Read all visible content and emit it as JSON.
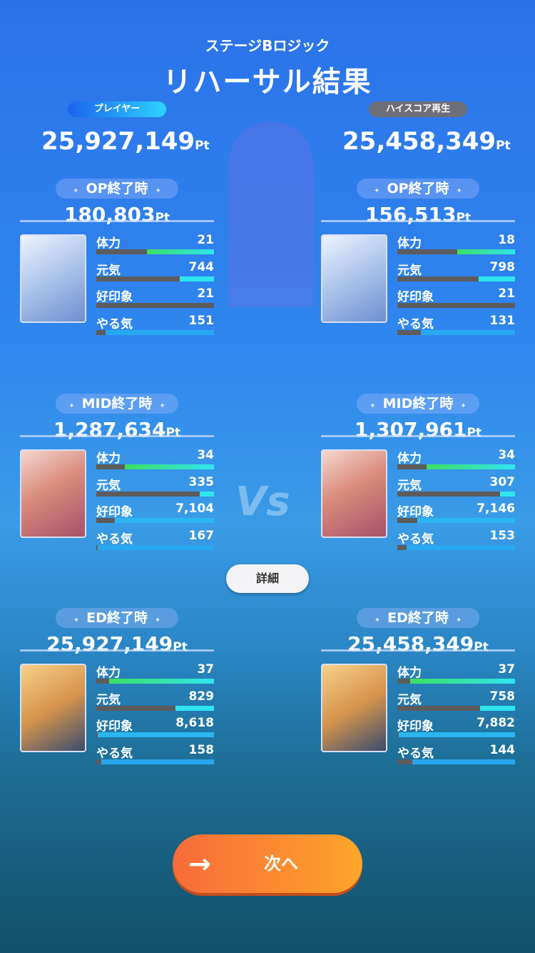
{
  "header": {
    "subtitle": "ステージBロジック",
    "title": "リハーサル結果"
  },
  "vs_label": "Vs",
  "colors": {
    "stamina": "#3ce060",
    "genki": "#2fe6f0",
    "impression": "#2bb6f2",
    "motivation": "#28a8f0",
    "player_pill": "#2ed3ff",
    "highscore_pill": "#6e6e78",
    "next_button": "#f98a32"
  },
  "unit": "Pt",
  "stat_labels": [
    "体力",
    "元気",
    "好印象",
    "やる気"
  ],
  "columns": [
    {
      "badge": "プレイヤー",
      "total": "25,927,149",
      "sections": [
        {
          "label": "OP終了時",
          "score": "180,803",
          "portrait": "silver-haired-idol",
          "stats": [
            {
              "value": "21",
              "fill": 0.57
            },
            {
              "value": "744",
              "fill": 0.29
            },
            {
              "value": "21",
              "fill": 0
            },
            {
              "value": "151",
              "fill": 0.92
            }
          ]
        },
        {
          "label": "MID終了時",
          "score": "1,287,634",
          "portrait": "red-haired-idol",
          "stats": [
            {
              "value": "34",
              "fill": 0.76
            },
            {
              "value": "335",
              "fill": 0.12
            },
            {
              "value": "7,104",
              "fill": 0.84
            },
            {
              "value": "167",
              "fill": 0.99
            }
          ]
        },
        {
          "label": "ED終了時",
          "score": "25,927,149",
          "portrait": "blonde-idol",
          "stats": [
            {
              "value": "37",
              "fill": 0.89
            },
            {
              "value": "829",
              "fill": 0.33
            },
            {
              "value": "8,618",
              "fill": 0.99
            },
            {
              "value": "158",
              "fill": 0.96
            }
          ]
        }
      ]
    },
    {
      "badge": "ハイスコア再生",
      "total": "25,458,349",
      "sections": [
        {
          "label": "OP終了時",
          "score": "156,513",
          "portrait": "silver-haired-idol",
          "stats": [
            {
              "value": "18",
              "fill": 0.49
            },
            {
              "value": "798",
              "fill": 0.31
            },
            {
              "value": "21",
              "fill": 0
            },
            {
              "value": "131",
              "fill": 0.8
            }
          ]
        },
        {
          "label": "MID終了時",
          "score": "1,307,961",
          "portrait": "red-haired-idol",
          "stats": [
            {
              "value": "34",
              "fill": 0.75
            },
            {
              "value": "307",
              "fill": 0.13
            },
            {
              "value": "7,146",
              "fill": 0.83
            },
            {
              "value": "153",
              "fill": 0.92
            }
          ]
        },
        {
          "label": "ED終了時",
          "score": "25,458,349",
          "portrait": "blonde-idol",
          "stats": [
            {
              "value": "37",
              "fill": 0.89
            },
            {
              "value": "758",
              "fill": 0.3
            },
            {
              "value": "7,882",
              "fill": 0.99
            },
            {
              "value": "144",
              "fill": 0.87
            }
          ]
        }
      ]
    }
  ],
  "buttons": {
    "detail": "詳細",
    "next": "次へ",
    "next_icon": "→"
  }
}
